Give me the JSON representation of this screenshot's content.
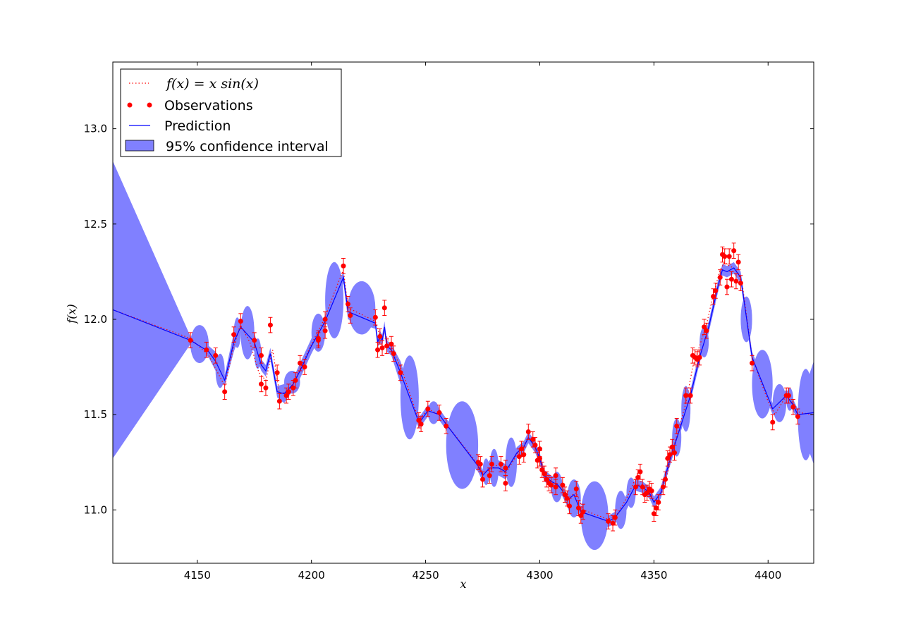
{
  "chart_data": {
    "type": "line",
    "title": "",
    "xlabel": "x",
    "ylabel": "f(x)",
    "xlim": [
      4113,
      4420
    ],
    "ylim": [
      10.72,
      13.35
    ],
    "xticks": [
      4150,
      4200,
      4250,
      4300,
      4350,
      4400
    ],
    "yticks": [
      11.0,
      11.5,
      12.0,
      12.5,
      13.0
    ],
    "xtick_labels": [
      "4150",
      "4200",
      "4250",
      "4300",
      "4350",
      "4400"
    ],
    "ytick_labels": [
      "11.0",
      "11.5",
      "12.0",
      "12.5",
      "13.0"
    ],
    "grid": false,
    "legend_position": "top-left",
    "legend": [
      {
        "label": "f(x) = x sin(x)",
        "style": "dotted-line",
        "color": "#ff0000"
      },
      {
        "label": "Observations",
        "style": "markers",
        "color": "#ff0000"
      },
      {
        "label": "Prediction",
        "style": "line",
        "color": "#0000ff"
      },
      {
        "label": "95% confidence interval",
        "style": "patch",
        "color": "#8080ff"
      }
    ],
    "true_function": {
      "x": [
        4113,
        4147,
        4155,
        4162,
        4166,
        4169,
        4173,
        4177,
        4180,
        4183,
        4186,
        4190,
        4195,
        4200,
        4206,
        4210,
        4214,
        4216,
        4228,
        4230,
        4232,
        4236,
        4240,
        4247,
        4251,
        4256,
        4259,
        4273,
        4275,
        4278,
        4282,
        4285,
        4291,
        4294,
        4297,
        4299,
        4302,
        4305,
        4310,
        4313,
        4316,
        4319,
        4330,
        4334,
        4338,
        4341,
        4343,
        4345,
        4348,
        4350,
        4353,
        4355,
        4358,
        4361,
        4364,
        4367,
        4370,
        4373,
        4376,
        4379,
        4381,
        4383,
        4385,
        4387,
        4389,
        4393,
        4400,
        4403,
        4408,
        4411,
        4414,
        4420
      ],
      "y": [
        12.05,
        11.9,
        11.81,
        11.65,
        11.86,
        11.97,
        11.88,
        11.72,
        11.68,
        11.84,
        11.61,
        11.62,
        11.74,
        11.87,
        12.01,
        12.14,
        12.26,
        12.06,
        11.99,
        11.91,
        11.93,
        11.83,
        11.72,
        11.47,
        11.53,
        11.5,
        11.45,
        11.24,
        11.19,
        11.21,
        11.24,
        11.19,
        11.31,
        11.36,
        11.38,
        11.33,
        11.2,
        11.15,
        11.11,
        11.07,
        11.09,
        11.0,
        10.95,
        10.98,
        11.06,
        11.14,
        11.2,
        11.12,
        11.09,
        11.04,
        11.08,
        11.14,
        11.31,
        11.43,
        11.56,
        11.75,
        11.86,
        11.97,
        12.13,
        12.26,
        12.3,
        12.28,
        12.27,
        12.24,
        12.16,
        11.8,
        11.57,
        11.5,
        11.6,
        11.56,
        11.51,
        11.5
      ]
    },
    "observations": {
      "x": [
        4147,
        4154,
        4158,
        4162,
        4166,
        4169,
        4175,
        4178,
        4178,
        4180,
        4182,
        4185,
        4186,
        4189,
        4190,
        4192,
        4193,
        4195,
        4197,
        4203,
        4203,
        4206,
        4206,
        4214,
        4216,
        4217,
        4228,
        4229,
        4230,
        4231,
        4232,
        4233,
        4235,
        4236,
        4239,
        4247,
        4248,
        4251,
        4256,
        4259,
        4273,
        4274,
        4275,
        4278,
        4279,
        4283,
        4285,
        4285,
        4291,
        4292,
        4293,
        4295,
        4297,
        4298,
        4299,
        4300,
        4300,
        4301,
        4302,
        4303,
        4304,
        4305,
        4307,
        4307,
        4310,
        4311,
        4312,
        4313,
        4316,
        4317,
        4318,
        4319,
        4330,
        4332,
        4333,
        4342,
        4343,
        4344,
        4345,
        4346,
        4347,
        4348,
        4349,
        4350,
        4351,
        4352,
        4354,
        4355,
        4356,
        4357,
        4358,
        4359,
        4360,
        4364,
        4366,
        4367,
        4368,
        4369,
        4370,
        4372,
        4373,
        4376,
        4377,
        4379,
        4380,
        4381,
        4382,
        4383,
        4384,
        4385,
        4386,
        4387,
        4388,
        4393,
        4402,
        4408,
        4409,
        4411,
        4413
      ],
      "y": [
        11.89,
        11.84,
        11.81,
        11.62,
        11.92,
        11.99,
        11.89,
        11.81,
        11.66,
        11.64,
        11.97,
        11.72,
        11.57,
        11.6,
        11.62,
        11.64,
        11.68,
        11.77,
        11.75,
        11.89,
        11.9,
        11.94,
        12.0,
        12.28,
        12.08,
        12.02,
        12.01,
        11.84,
        11.91,
        11.85,
        12.06,
        11.86,
        11.87,
        11.82,
        11.72,
        11.47,
        11.45,
        11.53,
        11.51,
        11.44,
        11.25,
        11.24,
        11.16,
        11.18,
        11.24,
        11.24,
        11.22,
        11.14,
        11.28,
        11.32,
        11.29,
        11.41,
        11.37,
        11.34,
        11.26,
        11.32,
        11.27,
        11.21,
        11.19,
        11.16,
        11.14,
        11.13,
        11.12,
        11.18,
        11.13,
        11.08,
        11.06,
        11.02,
        11.11,
        11.01,
        10.97,
        10.99,
        10.94,
        10.93,
        10.96,
        11.12,
        11.17,
        11.2,
        11.12,
        11.08,
        11.09,
        11.11,
        11.1,
        10.98,
        11.01,
        11.04,
        11.12,
        11.16,
        11.27,
        11.29,
        11.33,
        11.3,
        11.44,
        11.6,
        11.6,
        11.81,
        11.8,
        11.79,
        11.8,
        11.96,
        11.94,
        12.12,
        12.15,
        12.22,
        12.34,
        12.33,
        12.17,
        12.33,
        12.21,
        12.36,
        12.2,
        12.3,
        12.19,
        11.77,
        11.46,
        11.6,
        11.6,
        11.54,
        11.49
      ],
      "error": 0.04
    },
    "prediction": {
      "x": [
        4113,
        4147,
        4155,
        4158,
        4162,
        4166,
        4169,
        4175,
        4178,
        4180,
        4182,
        4185,
        4188,
        4192,
        4195,
        4200,
        4206,
        4214,
        4216,
        4228,
        4229,
        4230,
        4231,
        4232,
        4233,
        4235,
        4239,
        4247,
        4248,
        4251,
        4256,
        4259,
        4273,
        4275,
        4278,
        4282,
        4285,
        4290,
        4293,
        4295,
        4298,
        4300,
        4302,
        4305,
        4308,
        4310,
        4312,
        4315,
        4318,
        4330,
        4333,
        4338,
        4342,
        4345,
        4348,
        4350,
        4353,
        4356,
        4358,
        4362,
        4366,
        4370,
        4374,
        4378,
        4380,
        4382,
        4385,
        4388,
        4393,
        4402,
        4408,
        4411,
        4413,
        4420
      ],
      "y": [
        12.05,
        11.89,
        11.83,
        11.78,
        11.68,
        11.88,
        11.96,
        11.88,
        11.76,
        11.73,
        11.82,
        11.62,
        11.61,
        11.66,
        11.73,
        11.86,
        11.99,
        12.22,
        12.04,
        11.98,
        11.88,
        11.91,
        11.89,
        11.96,
        11.86,
        11.84,
        11.72,
        11.46,
        11.47,
        11.52,
        11.5,
        11.45,
        11.23,
        11.18,
        11.22,
        11.22,
        11.2,
        11.3,
        11.33,
        11.38,
        11.33,
        11.27,
        11.18,
        11.15,
        11.13,
        11.1,
        11.05,
        11.08,
        10.99,
        10.94,
        10.96,
        11.04,
        11.13,
        11.12,
        11.09,
        11.04,
        11.09,
        11.22,
        11.3,
        11.45,
        11.6,
        11.8,
        11.96,
        12.17,
        12.26,
        12.25,
        12.27,
        12.22,
        11.8,
        11.53,
        11.6,
        11.55,
        11.5,
        11.51
      ],
      "ci_halfwidth": [
        0.78,
        0.02,
        0.03,
        0.05,
        0.03,
        0.05,
        0.03,
        0.05,
        0.03,
        0.03,
        0.03,
        0.03,
        0.05,
        0.03,
        0.04,
        0.04,
        0.03,
        0.03,
        0.04,
        0.03,
        0.03,
        0.03,
        0.03,
        0.03,
        0.03,
        0.03,
        0.06,
        0.03,
        0.03,
        0.03,
        0.03,
        0.03,
        0.03,
        0.03,
        0.04,
        0.04,
        0.04,
        0.03,
        0.03,
        0.03,
        0.03,
        0.03,
        0.03,
        0.03,
        0.03,
        0.03,
        0.03,
        0.03,
        0.03,
        0.03,
        0.03,
        0.04,
        0.03,
        0.03,
        0.03,
        0.03,
        0.03,
        0.03,
        0.03,
        0.03,
        0.03,
        0.03,
        0.03,
        0.03,
        0.03,
        0.03,
        0.03,
        0.03,
        0.03,
        0.03,
        0.03,
        0.03,
        0.03,
        0.27
      ]
    },
    "confidence_bulges": [
      {
        "x0": 4147,
        "x1": 4155,
        "center": 11.87,
        "halfwidth": 0.1
      },
      {
        "x0": 4158,
        "x1": 4162,
        "center": 11.73,
        "halfwidth": 0.09
      },
      {
        "x0": 4166,
        "x1": 4169,
        "center": 11.93,
        "halfwidth": 0.08
      },
      {
        "x0": 4169,
        "x1": 4175,
        "center": 11.93,
        "halfwidth": 0.14
      },
      {
        "x0": 4175,
        "x1": 4178,
        "center": 11.82,
        "halfwidth": 0.08
      },
      {
        "x0": 4188,
        "x1": 4195,
        "center": 11.67,
        "halfwidth": 0.06
      },
      {
        "x0": 4200,
        "x1": 4206,
        "center": 11.93,
        "halfwidth": 0.1
      },
      {
        "x0": 4206,
        "x1": 4214,
        "center": 12.1,
        "halfwidth": 0.2
      },
      {
        "x0": 4216,
        "x1": 4228,
        "center": 12.06,
        "halfwidth": 0.14
      },
      {
        "x0": 4239,
        "x1": 4247,
        "center": 11.59,
        "halfwidth": 0.22
      },
      {
        "x0": 4251,
        "x1": 4256,
        "center": 11.51,
        "halfwidth": 0.06
      },
      {
        "x0": 4259,
        "x1": 4273,
        "center": 11.34,
        "halfwidth": 0.23
      },
      {
        "x0": 4275,
        "x1": 4278,
        "center": 11.2,
        "halfwidth": 0.07
      },
      {
        "x0": 4278,
        "x1": 4282,
        "center": 11.22,
        "halfwidth": 0.1
      },
      {
        "x0": 4285,
        "x1": 4290,
        "center": 11.25,
        "halfwidth": 0.13
      },
      {
        "x0": 4305,
        "x1": 4310,
        "center": 11.12,
        "halfwidth": 0.08
      },
      {
        "x0": 4312,
        "x1": 4318,
        "center": 11.06,
        "halfwidth": 0.1
      },
      {
        "x0": 4318,
        "x1": 4330,
        "center": 10.97,
        "halfwidth": 0.18
      },
      {
        "x0": 4333,
        "x1": 4338,
        "center": 11.0,
        "halfwidth": 0.1
      },
      {
        "x0": 4338,
        "x1": 4342,
        "center": 11.09,
        "halfwidth": 0.08
      },
      {
        "x0": 4358,
        "x1": 4362,
        "center": 11.38,
        "halfwidth": 0.1
      },
      {
        "x0": 4362,
        "x1": 4366,
        "center": 11.53,
        "halfwidth": 0.12
      },
      {
        "x0": 4370,
        "x1": 4374,
        "center": 11.88,
        "halfwidth": 0.08
      },
      {
        "x0": 4388,
        "x1": 4393,
        "center": 12.0,
        "halfwidth": 0.12
      },
      {
        "x0": 4393,
        "x1": 4402,
        "center": 11.66,
        "halfwidth": 0.18
      },
      {
        "x0": 4402,
        "x1": 4408,
        "center": 11.56,
        "halfwidth": 0.1
      },
      {
        "x0": 4408,
        "x1": 4411,
        "center": 11.58,
        "halfwidth": 0.06
      },
      {
        "x0": 4413,
        "x1": 4420,
        "center": 11.5,
        "halfwidth": 0.24
      }
    ],
    "colors": {
      "true_function": "#ff0000",
      "observations": "#ff0000",
      "prediction": "#0000ff",
      "confidence": "#8080ff"
    }
  }
}
